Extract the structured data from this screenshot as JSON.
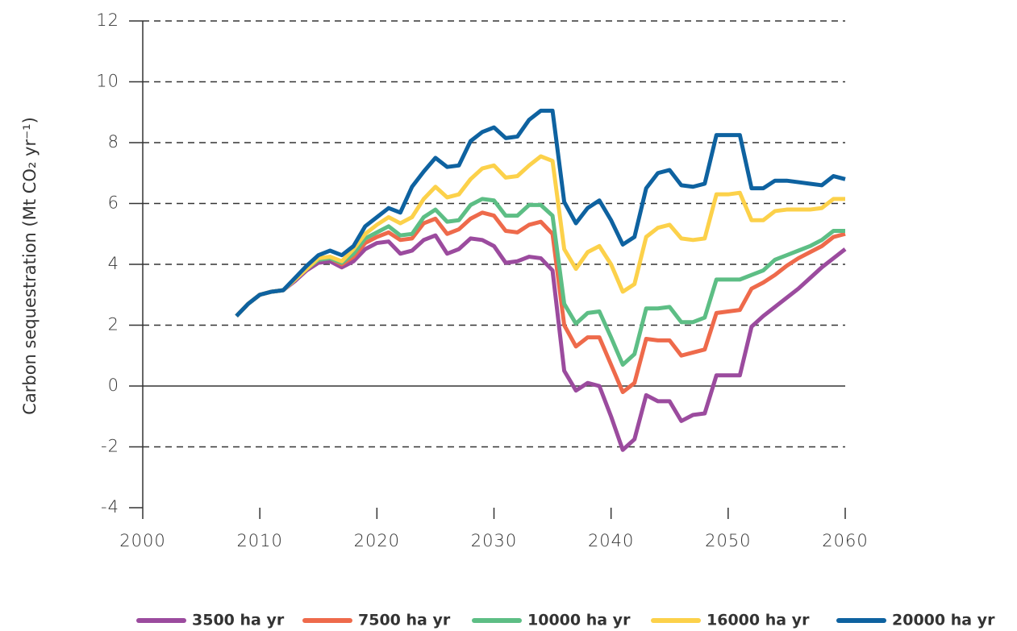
{
  "chart_data": {
    "type": "line",
    "y_label": "Carbon sequestration (Mt CO₂ yr⁻¹)",
    "x": [
      2008,
      2009,
      2010,
      2011,
      2012,
      2013,
      2014,
      2015,
      2016,
      2017,
      2018,
      2019,
      2020,
      2021,
      2022,
      2023,
      2024,
      2025,
      2026,
      2027,
      2028,
      2029,
      2030,
      2031,
      2032,
      2033,
      2034,
      2035,
      2036,
      2037,
      2038,
      2039,
      2040,
      2041,
      2042,
      2043,
      2044,
      2045,
      2046,
      2047,
      2048,
      2049,
      2050,
      2051,
      2052,
      2053,
      2054,
      2055,
      2056,
      2057,
      2058,
      2059,
      2060
    ],
    "xlim": [
      2000,
      2060
    ],
    "xticks": [
      2000,
      2010,
      2020,
      2030,
      2040,
      2050,
      2060
    ],
    "ylim": [
      -4,
      12
    ],
    "yticks": [
      -4,
      -2,
      0,
      2,
      4,
      6,
      8,
      10,
      12
    ],
    "grid": true,
    "legend": "bottom",
    "series": [
      {
        "name": "3500 ha yr",
        "color": "#9b4b9e",
        "values": [
          2.3,
          2.7,
          3.0,
          3.1,
          3.15,
          3.45,
          3.8,
          4.05,
          4.1,
          3.9,
          4.1,
          4.5,
          4.7,
          4.75,
          4.35,
          4.45,
          4.8,
          4.95,
          4.35,
          4.5,
          4.85,
          4.8,
          4.6,
          4.05,
          4.1,
          4.25,
          4.2,
          3.8,
          0.5,
          -0.15,
          0.1,
          0,
          -1.0,
          -2.1,
          -1.75,
          -0.3,
          -0.5,
          -0.5,
          -1.15,
          -0.95,
          -0.9,
          0.35,
          0.35,
          0.35,
          1.95,
          2.3,
          2.6,
          2.9,
          3.2,
          3.55,
          3.9,
          4.2,
          4.5
        ]
      },
      {
        "name": "7500 ha yr",
        "color": "#ee6a4b",
        "values": [
          2.3,
          2.7,
          3.0,
          3.1,
          3.15,
          3.5,
          3.85,
          4.15,
          4.2,
          4.0,
          4.25,
          4.7,
          4.9,
          5.05,
          4.8,
          4.85,
          5.35,
          5.5,
          5.0,
          5.15,
          5.5,
          5.7,
          5.6,
          5.1,
          5.05,
          5.3,
          5.4,
          5.0,
          2.0,
          1.3,
          1.6,
          1.6,
          0.7,
          -0.2,
          0.1,
          1.55,
          1.5,
          1.5,
          1.0,
          1.1,
          1.2,
          2.4,
          2.45,
          2.5,
          3.2,
          3.4,
          3.65,
          3.95,
          4.2,
          4.4,
          4.6,
          4.9,
          5.0
        ]
      },
      {
        "name": "10000 ha yr",
        "color": "#5dbe85",
        "values": [
          2.3,
          2.7,
          3.0,
          3.1,
          3.15,
          3.5,
          3.85,
          4.15,
          4.2,
          4.05,
          4.35,
          4.85,
          5.05,
          5.25,
          4.95,
          5.0,
          5.55,
          5.8,
          5.4,
          5.45,
          5.95,
          6.15,
          6.1,
          5.6,
          5.6,
          5.95,
          5.95,
          5.6,
          2.7,
          2.05,
          2.4,
          2.45,
          1.6,
          0.7,
          1.05,
          2.55,
          2.55,
          2.6,
          2.1,
          2.1,
          2.25,
          3.5,
          3.5,
          3.5,
          3.65,
          3.8,
          4.15,
          4.3,
          4.45,
          4.6,
          4.8,
          5.1,
          5.1
        ]
      },
      {
        "name": "16000 ha yr",
        "color": "#fcd14a",
        "values": [
          2.3,
          2.7,
          3.0,
          3.1,
          3.15,
          3.5,
          3.85,
          4.2,
          4.25,
          4.1,
          4.5,
          5.0,
          5.3,
          5.55,
          5.35,
          5.55,
          6.15,
          6.55,
          6.2,
          6.3,
          6.8,
          7.15,
          7.25,
          6.85,
          6.9,
          7.25,
          7.55,
          7.4,
          4.5,
          3.85,
          4.4,
          4.6,
          4.0,
          3.1,
          3.35,
          4.9,
          5.2,
          5.3,
          4.85,
          4.8,
          4.85,
          6.3,
          6.3,
          6.35,
          5.45,
          5.45,
          5.75,
          5.8,
          5.8,
          5.8,
          5.85,
          6.15,
          6.15
        ]
      },
      {
        "name": "20000 ha yr",
        "color": "#0e62a0",
        "values": [
          2.3,
          2.7,
          3.0,
          3.1,
          3.15,
          3.55,
          3.95,
          4.3,
          4.45,
          4.3,
          4.6,
          5.25,
          5.55,
          5.85,
          5.7,
          6.55,
          7.05,
          7.5,
          7.2,
          7.25,
          8.05,
          8.35,
          8.5,
          8.15,
          8.2,
          8.75,
          9.05,
          9.05,
          6.05,
          5.35,
          5.85,
          6.1,
          5.45,
          4.65,
          4.9,
          6.5,
          7.0,
          7.1,
          6.6,
          6.55,
          6.65,
          8.25,
          8.25,
          8.25,
          6.5,
          6.5,
          6.75,
          6.75,
          6.7,
          6.65,
          6.6,
          6.9,
          6.8
        ]
      }
    ]
  }
}
